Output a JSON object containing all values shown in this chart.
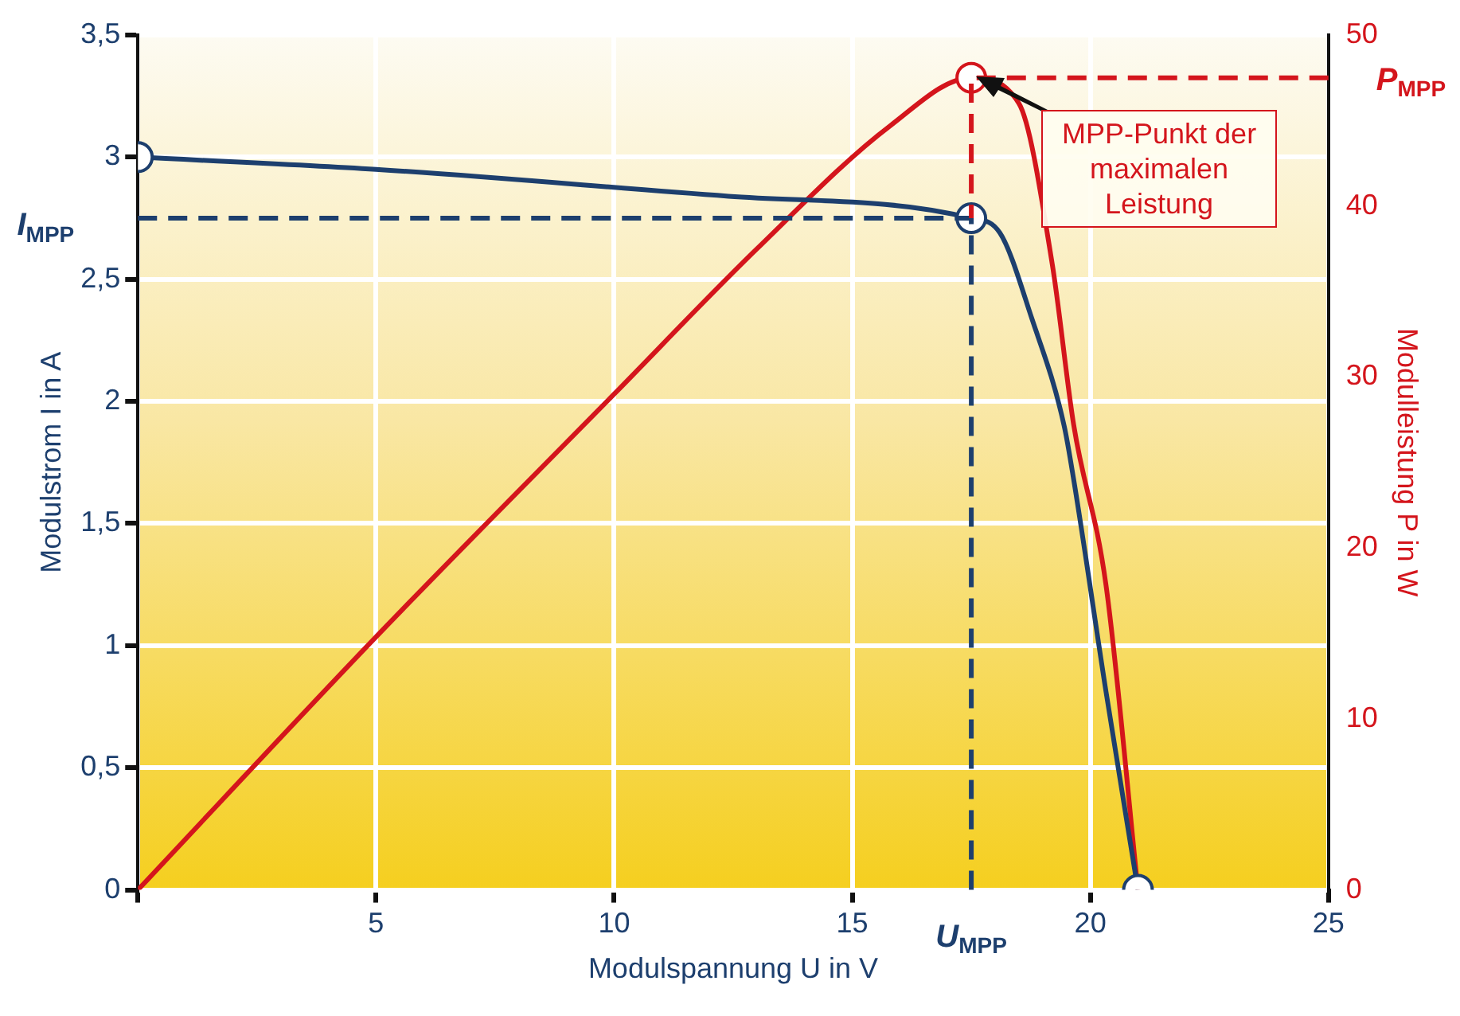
{
  "chart_data": {
    "type": "line",
    "xlabel": "Modulspannung U in V",
    "ylabel": "Modulstrom I in A",
    "y2label": "Modulleistung P in W",
    "series": [
      {
        "type": "line",
        "color": "#1d3f6e",
        "marker": "none",
        "x": [
          0,
          5,
          12.4,
          17.5,
          18.1,
          18.77,
          19.45,
          19.65,
          20.33,
          21
        ],
        "values": [
          3.0,
          2.95,
          2.84,
          2.75,
          2.69,
          2.34,
          1.9,
          1.68,
          0.81,
          0
        ]
      },
      {
        "type": "line",
        "color": "#d4151c",
        "marker": "none",
        "axis": "y2",
        "x": [
          0,
          5,
          10,
          13,
          15.8,
          17.5,
          18.5,
          19.2,
          19.65,
          20.33,
          21
        ],
        "values": [
          0,
          14.8,
          29,
          37.5,
          44.7,
          47.5,
          46,
          36.6,
          27.2,
          17.8,
          0
        ]
      },
      {
        "type": "scatter",
        "color": "#1d3f6e",
        "marker": "circle",
        "x": [
          0,
          17.5,
          21
        ],
        "values": [
          3.0,
          2.75,
          0
        ]
      },
      {
        "type": "scatter",
        "color": "#d4151c",
        "marker": "circle",
        "axis": "y2",
        "x": [
          17.5
        ],
        "values": [
          47.5
        ]
      }
    ],
    "xlim": [
      0,
      25
    ],
    "ylim": [
      0,
      3.5
    ],
    "y2lim": [
      0,
      50
    ],
    "xticks": [
      {
        "value": 0,
        "label": null
      },
      5,
      10,
      15,
      20,
      25
    ],
    "yticks": [
      0,
      {
        "value": 0.5,
        "label": "0,5"
      },
      1,
      {
        "value": 1.5,
        "label": "1,5"
      },
      2,
      {
        "value": 2.5,
        "label": "2,5"
      },
      3,
      {
        "value": 3.5,
        "label": "3,5"
      }
    ],
    "y2ticks": [
      0,
      10,
      20,
      30,
      40,
      50
    ],
    "ref_lines": [
      {
        "axis": "y",
        "value": 2.75,
        "label": "I$_{MPP}$",
        "color": "#1d3f6e",
        "line_style": "dashed"
      },
      {
        "axis": "x",
        "value": 17.5,
        "label": "U$_{MPP}$",
        "color": "#1d3f6e",
        "line_style": "dashed"
      },
      {
        "axis": "y2",
        "value": 47.5,
        "label": "P$_{MPP}$",
        "color": "#d4151c",
        "line_style": "dashed"
      }
    ],
    "annotations": [
      "MPP-Punkt der maximalen Leistung"
    ],
    "grid": true,
    "legend": false
  }
}
